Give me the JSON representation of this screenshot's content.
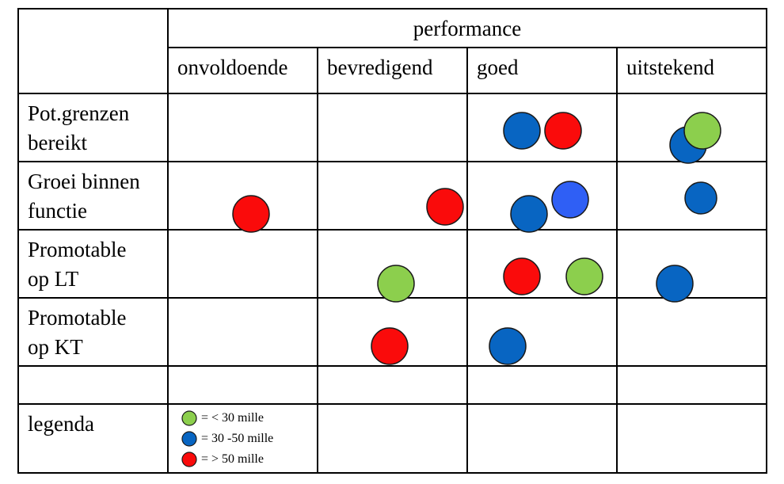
{
  "header": {
    "title": "performance"
  },
  "columns": [
    "onvoldoende",
    "bevredigend",
    "goed",
    "uitstekend"
  ],
  "rows": [
    {
      "line1": "Pot.grenzen",
      "line2": "bereikt"
    },
    {
      "line1": "Groei binnen",
      "line2": "functie"
    },
    {
      "line1": "Promotable",
      "line2": "op LT"
    },
    {
      "line1": "Promotable",
      "line2": "op KT"
    },
    {
      "line1": "",
      "line2": ""
    },
    {
      "line1": "legenda",
      "line2": ""
    }
  ],
  "legend": [
    {
      "label": "= < 30 mille",
      "color": "#8ccf4d"
    },
    {
      "label": "= 30 -50 mille",
      "color": "#0865c2"
    },
    {
      "label": "= > 50 mille",
      "color": "#fa0b0b"
    }
  ],
  "colors": {
    "green": "#8ccf4d",
    "blue": "#0865c2",
    "light_blue": "#2f5ff5",
    "red": "#fa0b0b",
    "grid": "#000000"
  }
}
